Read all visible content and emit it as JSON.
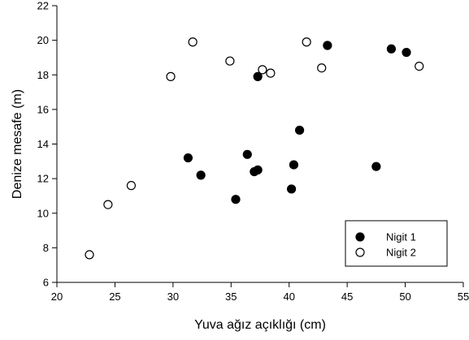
{
  "chart_data": {
    "type": "scatter",
    "title": "",
    "xlabel": "Yuva ağız açıklığı (cm)",
    "ylabel": "Denize mesafe (m)",
    "xlim": [
      20,
      55
    ],
    "ylim": [
      6,
      22
    ],
    "xticks": [
      20,
      25,
      30,
      35,
      40,
      45,
      50,
      55
    ],
    "yticks": [
      6,
      8,
      10,
      12,
      14,
      16,
      18,
      20,
      22
    ],
    "grid": false,
    "legend_position": "bottom-right",
    "series": [
      {
        "name": "Nigit 1",
        "marker": "filled-circle",
        "color": "#000000",
        "points": [
          {
            "x": 31.3,
            "y": 13.2
          },
          {
            "x": 32.4,
            "y": 12.2
          },
          {
            "x": 35.4,
            "y": 10.8
          },
          {
            "x": 36.4,
            "y": 13.4
          },
          {
            "x": 37.0,
            "y": 12.4
          },
          {
            "x": 37.3,
            "y": 12.5
          },
          {
            "x": 37.3,
            "y": 17.9
          },
          {
            "x": 40.2,
            "y": 11.4
          },
          {
            "x": 40.4,
            "y": 12.8
          },
          {
            "x": 40.9,
            "y": 14.8
          },
          {
            "x": 43.3,
            "y": 19.7
          },
          {
            "x": 47.5,
            "y": 12.7
          },
          {
            "x": 48.8,
            "y": 19.5
          },
          {
            "x": 50.1,
            "y": 19.3
          }
        ]
      },
      {
        "name": "Nigit 2",
        "marker": "open-circle",
        "color": "#000000",
        "points": [
          {
            "x": 22.8,
            "y": 7.6
          },
          {
            "x": 24.4,
            "y": 10.5
          },
          {
            "x": 26.4,
            "y": 11.6
          },
          {
            "x": 29.8,
            "y": 17.9
          },
          {
            "x": 31.7,
            "y": 19.9
          },
          {
            "x": 34.9,
            "y": 18.8
          },
          {
            "x": 37.7,
            "y": 18.3
          },
          {
            "x": 38.4,
            "y": 18.1
          },
          {
            "x": 41.5,
            "y": 19.9
          },
          {
            "x": 42.8,
            "y": 18.4
          },
          {
            "x": 51.2,
            "y": 18.5
          }
        ]
      }
    ]
  }
}
